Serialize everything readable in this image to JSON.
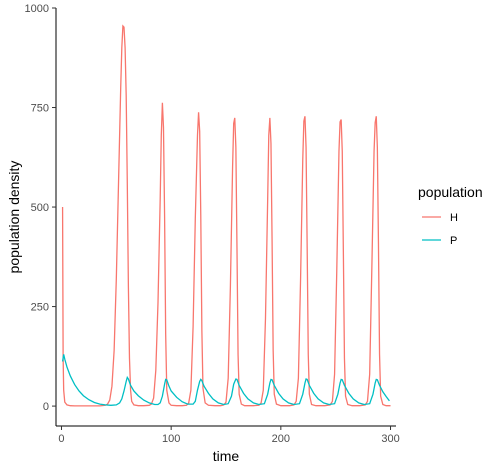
{
  "chart_data": {
    "type": "line",
    "xlabel": "time",
    "ylabel": "population density",
    "xlim": [
      -5,
      305
    ],
    "ylim": [
      -50,
      1000
    ],
    "x_ticks": [
      0,
      100,
      200,
      300
    ],
    "y_ticks": [
      0,
      250,
      500,
      750,
      1000
    ],
    "grid": false,
    "legend": {
      "title": "population",
      "placement": "right",
      "entries": [
        {
          "label": "H",
          "color": "#f8766d"
        },
        {
          "label": "P",
          "color": "#00bfc4"
        }
      ]
    },
    "series": [
      {
        "name": "H",
        "color": "#f8766d",
        "points": [
          [
            1,
            500
          ],
          [
            1.5,
            120
          ],
          [
            2,
            40
          ],
          [
            3,
            10
          ],
          [
            5,
            3
          ],
          [
            8,
            1
          ],
          [
            12,
            0.5
          ],
          [
            20,
            0.5
          ],
          [
            35,
            0.5
          ],
          [
            40,
            2
          ],
          [
            42,
            5
          ],
          [
            44,
            15
          ],
          [
            46,
            50
          ],
          [
            48,
            140
          ],
          [
            50,
            320
          ],
          [
            52,
            560
          ],
          [
            54,
            800
          ],
          [
            55,
            900
          ],
          [
            56,
            955
          ],
          [
            57,
            952
          ],
          [
            58,
            900
          ],
          [
            59,
            780
          ],
          [
            60,
            560
          ],
          [
            61,
            300
          ],
          [
            62,
            120
          ],
          [
            63,
            40
          ],
          [
            64,
            12
          ],
          [
            66,
            3
          ],
          [
            70,
            1
          ],
          [
            75,
            1
          ],
          [
            80,
            2
          ],
          [
            82,
            5
          ],
          [
            84,
            20
          ],
          [
            86,
            90
          ],
          [
            88,
            260
          ],
          [
            90,
            520
          ],
          [
            91,
            680
          ],
          [
            92,
            762
          ],
          [
            93,
            700
          ],
          [
            94,
            480
          ],
          [
            95,
            180
          ],
          [
            96,
            40
          ],
          [
            98,
            8
          ],
          [
            100,
            2
          ],
          [
            105,
            1
          ],
          [
            110,
            1
          ],
          [
            114,
            2
          ],
          [
            116,
            8
          ],
          [
            118,
            40
          ],
          [
            120,
            200
          ],
          [
            122,
            470
          ],
          [
            124,
            680
          ],
          [
            125,
            738
          ],
          [
            126,
            690
          ],
          [
            127,
            480
          ],
          [
            128,
            190
          ],
          [
            129,
            45
          ],
          [
            131,
            8
          ],
          [
            134,
            2
          ],
          [
            140,
            1
          ],
          [
            145,
            1
          ],
          [
            148,
            3
          ],
          [
            150,
            10
          ],
          [
            152,
            70
          ],
          [
            154,
            300
          ],
          [
            156,
            600
          ],
          [
            157,
            710
          ],
          [
            158,
            724
          ],
          [
            159,
            650
          ],
          [
            160,
            400
          ],
          [
            161,
            130
          ],
          [
            162,
            30
          ],
          [
            164,
            5
          ],
          [
            167,
            1
          ],
          [
            175,
            1
          ],
          [
            180,
            2
          ],
          [
            182,
            8
          ],
          [
            184,
            40
          ],
          [
            186,
            220
          ],
          [
            188,
            520
          ],
          [
            189,
            680
          ],
          [
            190,
            724
          ],
          [
            191,
            660
          ],
          [
            192,
            420
          ],
          [
            193,
            140
          ],
          [
            194,
            30
          ],
          [
            196,
            5
          ],
          [
            200,
            1
          ],
          [
            208,
            1
          ],
          [
            212,
            3
          ],
          [
            214,
            12
          ],
          [
            216,
            70
          ],
          [
            218,
            320
          ],
          [
            220,
            620
          ],
          [
            221,
            716
          ],
          [
            222,
            728
          ],
          [
            223,
            650
          ],
          [
            224,
            400
          ],
          [
            225,
            130
          ],
          [
            226,
            30
          ],
          [
            228,
            4
          ],
          [
            232,
            1
          ],
          [
            240,
            1
          ],
          [
            245,
            3
          ],
          [
            247,
            12
          ],
          [
            249,
            80
          ],
          [
            251,
            340
          ],
          [
            253,
            640
          ],
          [
            254,
            714
          ],
          [
            255,
            720
          ],
          [
            256,
            640
          ],
          [
            257,
            390
          ],
          [
            258,
            120
          ],
          [
            259,
            25
          ],
          [
            261,
            4
          ],
          [
            265,
            1
          ],
          [
            272,
            1
          ],
          [
            277,
            3
          ],
          [
            279,
            12
          ],
          [
            281,
            80
          ],
          [
            283,
            350
          ],
          [
            285,
            640
          ],
          [
            286,
            712
          ],
          [
            287,
            728
          ],
          [
            288,
            650
          ],
          [
            289,
            410
          ],
          [
            290,
            130
          ],
          [
            291,
            25
          ],
          [
            293,
            4
          ],
          [
            296,
            1
          ],
          [
            300,
            1
          ]
        ]
      },
      {
        "name": "P",
        "color": "#00bfc4",
        "points": [
          [
            1,
            112
          ],
          [
            2,
            130
          ],
          [
            3,
            118
          ],
          [
            5,
            98
          ],
          [
            8,
            76
          ],
          [
            12,
            54
          ],
          [
            16,
            38
          ],
          [
            20,
            26
          ],
          [
            25,
            16
          ],
          [
            30,
            9
          ],
          [
            35,
            5
          ],
          [
            40,
            3
          ],
          [
            45,
            2
          ],
          [
            50,
            3
          ],
          [
            53,
            8
          ],
          [
            55,
            18
          ],
          [
            57,
            38
          ],
          [
            59,
            62
          ],
          [
            60,
            72
          ],
          [
            61,
            68
          ],
          [
            63,
            52
          ],
          [
            66,
            38
          ],
          [
            70,
            26
          ],
          [
            75,
            15
          ],
          [
            80,
            8
          ],
          [
            85,
            4
          ],
          [
            88,
            4
          ],
          [
            90,
            8
          ],
          [
            92,
            25
          ],
          [
            94,
            55
          ],
          [
            95,
            67
          ],
          [
            96,
            66
          ],
          [
            98,
            50
          ],
          [
            100,
            38
          ],
          [
            105,
            22
          ],
          [
            110,
            11
          ],
          [
            115,
            5
          ],
          [
            120,
            5
          ],
          [
            122,
            12
          ],
          [
            124,
            40
          ],
          [
            126,
            62
          ],
          [
            127,
            67
          ],
          [
            128,
            64
          ],
          [
            130,
            50
          ],
          [
            134,
            32
          ],
          [
            138,
            18
          ],
          [
            143,
            8
          ],
          [
            148,
            4
          ],
          [
            152,
            6
          ],
          [
            155,
            25
          ],
          [
            157,
            55
          ],
          [
            159,
            68
          ],
          [
            160,
            67
          ],
          [
            162,
            52
          ],
          [
            166,
            32
          ],
          [
            170,
            18
          ],
          [
            175,
            8
          ],
          [
            180,
            4
          ],
          [
            185,
            6
          ],
          [
            188,
            30
          ],
          [
            190,
            58
          ],
          [
            191,
            67
          ],
          [
            192,
            66
          ],
          [
            194,
            52
          ],
          [
            198,
            32
          ],
          [
            202,
            18
          ],
          [
            207,
            8
          ],
          [
            212,
            4
          ],
          [
            217,
            6
          ],
          [
            220,
            30
          ],
          [
            222,
            58
          ],
          [
            223,
            68
          ],
          [
            224,
            67
          ],
          [
            226,
            52
          ],
          [
            230,
            32
          ],
          [
            234,
            18
          ],
          [
            239,
            8
          ],
          [
            244,
            4
          ],
          [
            249,
            6
          ],
          [
            252,
            30
          ],
          [
            254,
            58
          ],
          [
            255,
            67
          ],
          [
            256,
            66
          ],
          [
            258,
            52
          ],
          [
            262,
            32
          ],
          [
            266,
            18
          ],
          [
            271,
            8
          ],
          [
            276,
            4
          ],
          [
            281,
            6
          ],
          [
            284,
            30
          ],
          [
            286,
            58
          ],
          [
            287,
            67
          ],
          [
            288,
            66
          ],
          [
            290,
            52
          ],
          [
            293,
            36
          ],
          [
            296,
            24
          ],
          [
            299,
            13
          ]
        ]
      }
    ]
  }
}
